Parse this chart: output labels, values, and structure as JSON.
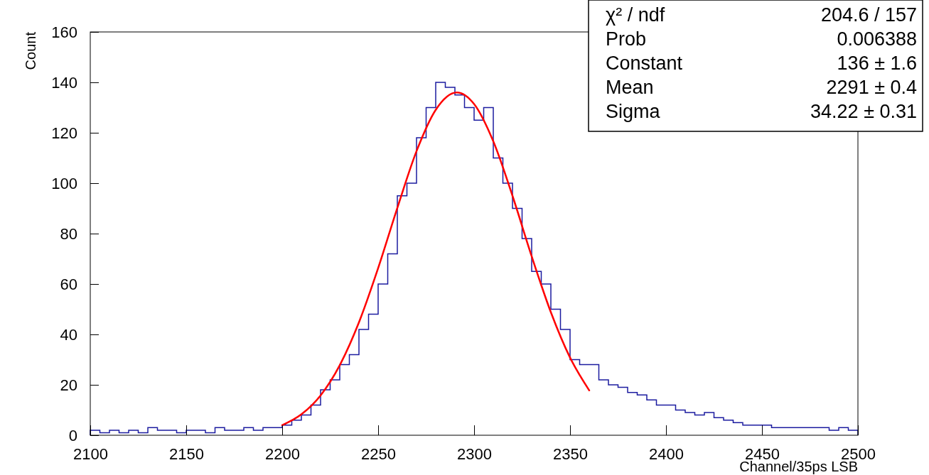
{
  "chart_data": {
    "type": "histogram",
    "xlabel": "Channel/35ps LSB",
    "ylabel": "Count",
    "xlim": [
      2100,
      2500
    ],
    "xticks": [
      2100,
      2150,
      2200,
      2250,
      2300,
      2350,
      2400,
      2450,
      2500
    ],
    "ylim": [
      0,
      160
    ],
    "yticks": [
      0,
      20,
      40,
      60,
      80,
      100,
      120,
      140,
      160
    ],
    "grid": false,
    "bins": [
      2100,
      2105,
      2110,
      2115,
      2120,
      2125,
      2130,
      2135,
      2140,
      2145,
      2150,
      2155,
      2160,
      2165,
      2170,
      2175,
      2180,
      2185,
      2190,
      2195,
      2200,
      2205,
      2210,
      2215,
      2220,
      2225,
      2230,
      2235,
      2240,
      2245,
      2250,
      2255,
      2260,
      2265,
      2270,
      2275,
      2280,
      2285,
      2290,
      2295,
      2300,
      2305,
      2310,
      2315,
      2320,
      2325,
      2330,
      2335,
      2340,
      2345,
      2350,
      2355,
      2360,
      2365,
      2370,
      2375,
      2380,
      2385,
      2390,
      2395,
      2400,
      2405,
      2410,
      2415,
      2420,
      2425,
      2430,
      2435,
      2440,
      2445,
      2450,
      2455,
      2460,
      2465,
      2470,
      2475,
      2480,
      2485,
      2490,
      2495,
      2500
    ],
    "series": [
      {
        "color": "#1c1ca0",
        "values": [
          2,
          1,
          2,
          1,
          2,
          1,
          3,
          2,
          2,
          1,
          2,
          2,
          1,
          3,
          2,
          2,
          3,
          2,
          3,
          3,
          4,
          6,
          8,
          12,
          18,
          22,
          28,
          32,
          42,
          48,
          60,
          72,
          95,
          100,
          118,
          130,
          140,
          138,
          135,
          130,
          125,
          130,
          110,
          100,
          90,
          78,
          65,
          60,
          50,
          42,
          30,
          28,
          28,
          22,
          20,
          19,
          17,
          16,
          14,
          12,
          12,
          10,
          9,
          8,
          9,
          7,
          6,
          5,
          4,
          4,
          4,
          3,
          3,
          3,
          3,
          3,
          3,
          2,
          3,
          2
        ]
      },
      {
        "type": "line",
        "color": "#ff0000",
        "x": [
          2200,
          2210,
          2220,
          2230,
          2240,
          2250,
          2260,
          2270,
          2280,
          2291,
          2300,
          2310,
          2320,
          2330,
          2340,
          2350,
          2360
        ],
        "values": [
          4.0,
          8.3,
          15.8,
          27.8,
          44.8,
          66.3,
          90.2,
          112.7,
          129.1,
          136,
          131.4,
          116.6,
          95.0,
          71.0,
          48.8,
          30.8,
          17.8
        ]
      }
    ],
    "annotations": [
      "χ² / ndf",
      "204.6 / 157",
      "Prob",
      "0.006388",
      "Constant",
      "136 ± 1.6",
      "Mean",
      "2291 ± 0.4",
      "Sigma",
      "34.22 ± 0.31"
    ]
  }
}
